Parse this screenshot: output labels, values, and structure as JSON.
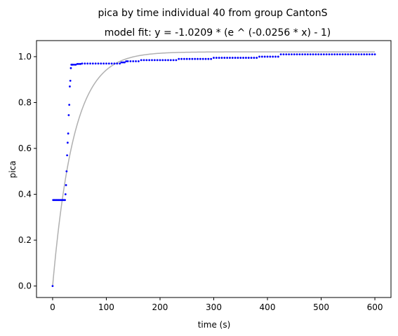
{
  "chart_data": {
    "type": "scatter",
    "title": "pica by time individual 40 from group CantonS",
    "subtitle": "model fit: y = -1.0209 * (e ^ (-0.0256 * x) - 1)",
    "xlabel": "time (s)",
    "ylabel": "pica",
    "xlim": [
      -30,
      630
    ],
    "ylim": [
      -0.05,
      1.07
    ],
    "xticks": [
      0,
      100,
      200,
      300,
      400,
      500,
      600
    ],
    "yticks": [
      0.0,
      0.2,
      0.4,
      0.6,
      0.8,
      1.0
    ],
    "xtick_labels": [
      "0",
      "100",
      "200",
      "300",
      "400",
      "500",
      "600"
    ],
    "ytick_labels": [
      "0.0",
      "0.2",
      "0.4",
      "0.6",
      "0.8",
      "1.0"
    ],
    "grid": false,
    "legend": "none",
    "series": [
      {
        "kind": "points",
        "color": "#0000ff",
        "points": [
          [
            0,
            0.0
          ],
          [
            1,
            0.375
          ],
          [
            3,
            0.375
          ],
          [
            5,
            0.375
          ],
          [
            7,
            0.375
          ],
          [
            9,
            0.375
          ],
          [
            11,
            0.375
          ],
          [
            13,
            0.375
          ],
          [
            15,
            0.375
          ],
          [
            17,
            0.375
          ],
          [
            19,
            0.375
          ],
          [
            21,
            0.375
          ],
          [
            23,
            0.375
          ],
          [
            24,
            0.4
          ],
          [
            25,
            0.44
          ],
          [
            26,
            0.5
          ],
          [
            27,
            0.57
          ],
          [
            28,
            0.625
          ],
          [
            29,
            0.665
          ],
          [
            30,
            0.745
          ],
          [
            31,
            0.79
          ],
          [
            32,
            0.87
          ],
          [
            33,
            0.895
          ],
          [
            34,
            0.95
          ],
          [
            35,
            0.965
          ],
          [
            37,
            0.965
          ],
          [
            40,
            0.965
          ],
          [
            43,
            0.965
          ],
          [
            46,
            0.968
          ],
          [
            49,
            0.968
          ],
          [
            52,
            0.968
          ],
          [
            55,
            0.97
          ],
          [
            60,
            0.97
          ],
          [
            65,
            0.97
          ],
          [
            70,
            0.97
          ],
          [
            75,
            0.97
          ],
          [
            80,
            0.97
          ],
          [
            85,
            0.97
          ],
          [
            90,
            0.97
          ],
          [
            95,
            0.97
          ],
          [
            100,
            0.97
          ],
          [
            105,
            0.97
          ],
          [
            110,
            0.97
          ],
          [
            115,
            0.97
          ],
          [
            120,
            0.97
          ],
          [
            125,
            0.97
          ],
          [
            128,
            0.975
          ],
          [
            131,
            0.975
          ],
          [
            134,
            0.975
          ],
          [
            137,
            0.98
          ],
          [
            140,
            0.98
          ],
          [
            145,
            0.98
          ],
          [
            150,
            0.98
          ],
          [
            155,
            0.98
          ],
          [
            160,
            0.98
          ],
          [
            165,
            0.985
          ],
          [
            170,
            0.985
          ],
          [
            175,
            0.985
          ],
          [
            180,
            0.985
          ],
          [
            185,
            0.985
          ],
          [
            190,
            0.985
          ],
          [
            195,
            0.985
          ],
          [
            200,
            0.985
          ],
          [
            205,
            0.985
          ],
          [
            210,
            0.985
          ],
          [
            215,
            0.985
          ],
          [
            220,
            0.985
          ],
          [
            225,
            0.985
          ],
          [
            230,
            0.985
          ],
          [
            235,
            0.99
          ],
          [
            240,
            0.99
          ],
          [
            245,
            0.99
          ],
          [
            250,
            0.99
          ],
          [
            255,
            0.99
          ],
          [
            260,
            0.99
          ],
          [
            265,
            0.99
          ],
          [
            270,
            0.99
          ],
          [
            275,
            0.99
          ],
          [
            280,
            0.99
          ],
          [
            285,
            0.99
          ],
          [
            290,
            0.99
          ],
          [
            295,
            0.99
          ],
          [
            300,
            0.995
          ],
          [
            305,
            0.995
          ],
          [
            310,
            0.995
          ],
          [
            315,
            0.995
          ],
          [
            320,
            0.995
          ],
          [
            325,
            0.995
          ],
          [
            330,
            0.995
          ],
          [
            335,
            0.995
          ],
          [
            340,
            0.995
          ],
          [
            345,
            0.995
          ],
          [
            350,
            0.995
          ],
          [
            355,
            0.995
          ],
          [
            360,
            0.995
          ],
          [
            365,
            0.995
          ],
          [
            370,
            0.995
          ],
          [
            375,
            0.995
          ],
          [
            380,
            0.995
          ],
          [
            385,
            1.0
          ],
          [
            390,
            1.0
          ],
          [
            395,
            1.0
          ],
          [
            400,
            1.0
          ],
          [
            405,
            1.0
          ],
          [
            410,
            1.0
          ],
          [
            415,
            1.0
          ],
          [
            420,
            1.0
          ],
          [
            425,
            1.01
          ],
          [
            430,
            1.01
          ],
          [
            435,
            1.01
          ],
          [
            440,
            1.01
          ],
          [
            445,
            1.01
          ],
          [
            450,
            1.01
          ],
          [
            455,
            1.01
          ],
          [
            460,
            1.01
          ],
          [
            465,
            1.01
          ],
          [
            470,
            1.01
          ],
          [
            475,
            1.01
          ],
          [
            480,
            1.01
          ],
          [
            485,
            1.01
          ],
          [
            490,
            1.01
          ],
          [
            495,
            1.01
          ],
          [
            500,
            1.01
          ],
          [
            505,
            1.01
          ],
          [
            510,
            1.01
          ],
          [
            515,
            1.01
          ],
          [
            520,
            1.01
          ],
          [
            525,
            1.01
          ],
          [
            530,
            1.01
          ],
          [
            535,
            1.01
          ],
          [
            540,
            1.01
          ],
          [
            545,
            1.01
          ],
          [
            550,
            1.01
          ],
          [
            555,
            1.01
          ],
          [
            560,
            1.01
          ],
          [
            565,
            1.01
          ],
          [
            570,
            1.01
          ],
          [
            575,
            1.01
          ],
          [
            580,
            1.01
          ],
          [
            585,
            1.01
          ],
          [
            590,
            1.01
          ],
          [
            595,
            1.01
          ],
          [
            600,
            1.01
          ]
        ]
      },
      {
        "kind": "fit",
        "color": "#b0b0b0",
        "a": 1.0209,
        "k": 0.0256,
        "x_range": [
          0,
          600
        ]
      }
    ]
  }
}
